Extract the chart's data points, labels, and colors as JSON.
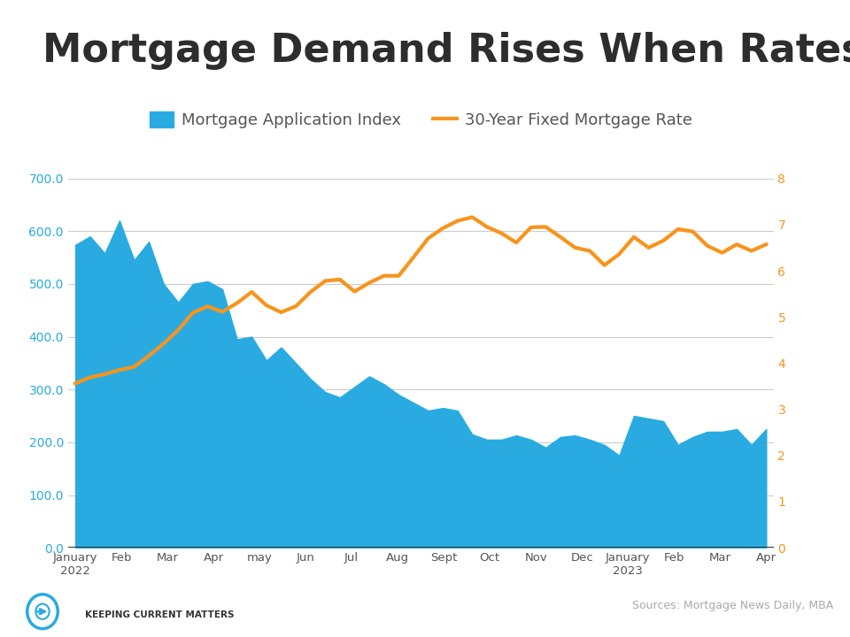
{
  "title": "Mortgage Demand Rises When Rates Fall",
  "title_color": "#2d2d2d",
  "title_fontsize": 32,
  "background_color": "#ffffff",
  "top_bar_color": "#29abe2",
  "legend_label_index": "Mortgage Application Index",
  "legend_label_rate": "30-Year Fixed Mortgage Rate",
  "area_color": "#29abe2",
  "rate_color": "#f7941d",
  "x_labels": [
    "January\n2022",
    "Feb",
    "Mar",
    "Apr",
    "may",
    "Jun",
    "Jul",
    "Aug",
    "Sept",
    "Oct",
    "Nov",
    "Dec",
    "January\n2023",
    "Feb",
    "Mar",
    "Apr"
  ],
  "left_ylim": [
    0,
    700
  ],
  "right_ylim": [
    0,
    8
  ],
  "left_yticks": [
    0.0,
    100.0,
    200.0,
    300.0,
    400.0,
    500.0,
    600.0,
    700.0
  ],
  "right_yticks": [
    0,
    1,
    2,
    3,
    4,
    5,
    6,
    7,
    8
  ],
  "left_ytick_labels": [
    "0.0",
    "100.0",
    "200.0",
    "300.0",
    "400.0",
    "500.0",
    "600.0",
    "700.0"
  ],
  "right_ytick_labels": [
    "0",
    "1",
    "2",
    "3",
    "4",
    "5",
    "6",
    "7",
    "8"
  ],
  "source_text": "Sources: Mortgage News Daily, MBA",
  "logo_text": "Keeping Current Matters",
  "mortgage_index": [
    574,
    590,
    558,
    620,
    545,
    580,
    500,
    465,
    500,
    505,
    490,
    395,
    400,
    355,
    380,
    350,
    320,
    295,
    285,
    305,
    325,
    310,
    290,
    275,
    260,
    265,
    260,
    215,
    205,
    205,
    213,
    205,
    190,
    210,
    213,
    205,
    195,
    175,
    250,
    245,
    240,
    195,
    210,
    220,
    220,
    225,
    195,
    225
  ],
  "mortgage_rate": [
    3.56,
    3.69,
    3.76,
    3.85,
    3.92,
    4.16,
    4.42,
    4.72,
    5.09,
    5.23,
    5.11,
    5.3,
    5.54,
    5.25,
    5.1,
    5.23,
    5.54,
    5.78,
    5.81,
    5.55,
    5.74,
    5.89,
    5.89,
    6.29,
    6.7,
    6.92,
    7.08,
    7.16,
    6.95,
    6.81,
    6.61,
    6.94,
    6.95,
    6.73,
    6.5,
    6.43,
    6.12,
    6.36,
    6.73,
    6.5,
    6.65,
    6.9,
    6.85,
    6.54,
    6.39,
    6.57,
    6.43,
    6.57
  ],
  "n_points": 48,
  "grid_color": "#cccccc",
  "axis_color": "#29abe2",
  "right_axis_color": "#f7941d",
  "tick_color": "#29abe2"
}
